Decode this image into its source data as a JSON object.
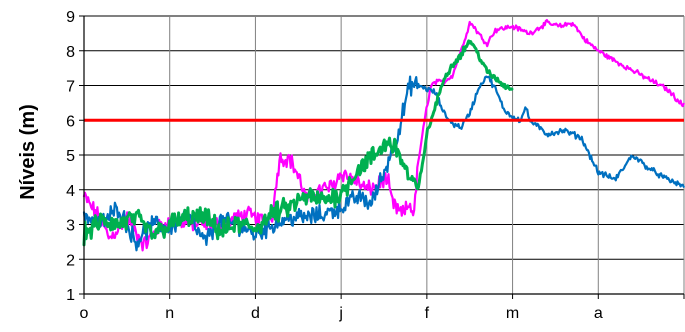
{
  "chart_data": {
    "type": "line",
    "title": "",
    "xlabel": "",
    "ylabel": "Níveis (m)",
    "ylim": [
      1,
      9
    ],
    "xlim": [
      0,
      7
    ],
    "yticks": [
      1,
      2,
      3,
      4,
      5,
      6,
      7,
      8,
      9
    ],
    "xtick_labels": [
      "o",
      "n",
      "d",
      "j",
      "f",
      "m",
      "a"
    ],
    "grid": true,
    "legend": "none",
    "reference_line": {
      "y": 6,
      "color": "#ff0000"
    },
    "series": [
      {
        "color": "#ff00ff",
        "width": 2.2,
        "noise": 0.22,
        "x": [
          0,
          0.15,
          0.3,
          0.5,
          0.7,
          0.9,
          1.1,
          1.3,
          1.6,
          1.9,
          2.1,
          2.2,
          2.28,
          2.4,
          2.5,
          2.6,
          2.75,
          2.9,
          3.0,
          3.15,
          3.3,
          3.4,
          3.5,
          3.55,
          3.6,
          3.7,
          3.75,
          3.8,
          3.85,
          3.9,
          3.95,
          4.0,
          4.05,
          4.1,
          4.2,
          4.3,
          4.4,
          4.5,
          4.55,
          4.6,
          4.7,
          4.8,
          5.0,
          5.2,
          5.4,
          5.55,
          5.7,
          5.85,
          6.0,
          6.2,
          6.5,
          6.8,
          7.0
        ],
        "y": [
          3.8,
          3.3,
          2.6,
          3.2,
          2.4,
          3.0,
          3.1,
          3.0,
          3.0,
          3.3,
          3.1,
          3.3,
          4.9,
          4.9,
          4.4,
          3.7,
          4.0,
          4.1,
          4.5,
          4.3,
          4.0,
          4.1,
          4.3,
          4.2,
          3.6,
          3.3,
          3.4,
          3.6,
          3.3,
          4.8,
          5.6,
          6.4,
          7.0,
          7.1,
          7.1,
          7.3,
          8.0,
          8.8,
          8.7,
          8.5,
          8.2,
          8.6,
          8.7,
          8.5,
          8.8,
          8.7,
          8.8,
          8.3,
          8.0,
          7.7,
          7.3,
          6.9,
          6.4
        ]
      },
      {
        "color": "#0070c0",
        "width": 2.2,
        "noise": 0.25,
        "x": [
          0,
          0.2,
          0.4,
          0.6,
          0.8,
          1.0,
          1.2,
          1.4,
          1.6,
          1.8,
          2.0,
          2.2,
          2.4,
          2.6,
          2.8,
          3.0,
          3.2,
          3.35,
          3.5,
          3.65,
          3.75,
          3.8,
          3.85,
          3.9,
          4.0,
          4.1,
          4.2,
          4.3,
          4.4,
          4.5,
          4.6,
          4.7,
          4.8,
          4.9,
          5.0,
          5.1,
          5.15,
          5.2,
          5.3,
          5.4,
          5.6,
          5.8,
          6.0,
          6.2,
          6.4,
          6.6,
          6.8,
          7.0
        ],
        "y": [
          3.3,
          3.0,
          3.5,
          2.5,
          3.0,
          2.9,
          3.3,
          2.5,
          3.1,
          3.0,
          2.7,
          3.0,
          3.2,
          3.2,
          3.3,
          3.5,
          3.8,
          3.6,
          4.5,
          5.5,
          6.5,
          7.0,
          7.0,
          7.0,
          6.9,
          6.8,
          6.2,
          5.9,
          5.8,
          6.2,
          6.9,
          7.3,
          6.9,
          6.3,
          6.1,
          6.0,
          6.4,
          6.0,
          5.8,
          5.6,
          5.7,
          5.5,
          4.5,
          4.3,
          5.0,
          4.6,
          4.3,
          4.1
        ]
      },
      {
        "color": "#00b050",
        "width": 3.0,
        "noise": 0.28,
        "x": [
          0,
          0.2,
          0.4,
          0.6,
          0.8,
          1.0,
          1.2,
          1.4,
          1.6,
          1.8,
          2.0,
          2.2,
          2.4,
          2.6,
          2.8,
          3.0,
          3.2,
          3.4,
          3.55,
          3.65,
          3.8,
          3.9,
          4.0,
          4.1,
          4.2,
          4.3,
          4.4,
          4.5,
          4.6,
          4.7,
          4.8,
          4.9,
          5.0
        ],
        "y": [
          2.7,
          3.1,
          3.0,
          3.2,
          2.7,
          3.0,
          3.2,
          3.2,
          2.8,
          3.0,
          2.9,
          3.3,
          3.5,
          3.8,
          3.7,
          3.9,
          4.6,
          5.0,
          5.4,
          5.2,
          4.3,
          4.0,
          5.6,
          6.4,
          7.2,
          7.6,
          7.9,
          8.3,
          7.9,
          7.4,
          7.2,
          7.0,
          6.9
        ]
      }
    ]
  }
}
